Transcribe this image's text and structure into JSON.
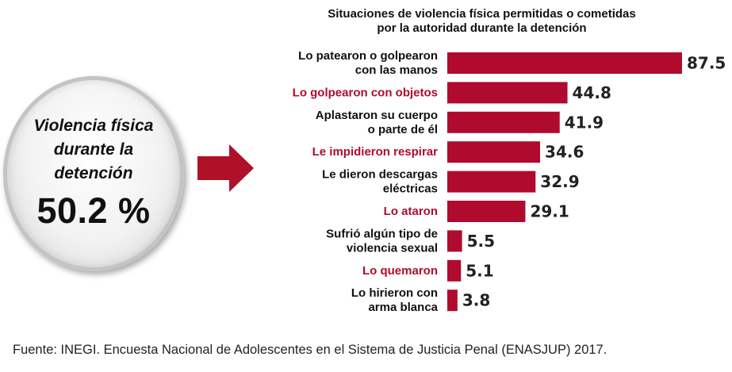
{
  "summary": {
    "label_lines": [
      "Violencia física",
      "durante la",
      "detención"
    ],
    "value": "50.2 %"
  },
  "colors": {
    "bar": "#b00b2e",
    "highlight_label": "#b00b2e",
    "label": "#111111",
    "arrow": "#b01028"
  },
  "source": "Fuente: INEGI. Encuesta Nacional de Adolescentes en el Sistema de Justicia Penal (ENASJUP) 2017.",
  "chart_data": {
    "type": "bar",
    "orientation": "horizontal",
    "title_lines": [
      "Situaciones de violencia física permitidas o cometidas",
      "por la autoridad durante la detención"
    ],
    "categories": [
      [
        "Lo patearon o golpearon",
        "con las manos"
      ],
      [
        "Lo golpearon con objetos"
      ],
      [
        "Aplastaron su cuerpo",
        "o parte de él"
      ],
      [
        "Le impidieron respirar"
      ],
      [
        "Le dieron descargas",
        "eléctricas"
      ],
      [
        "Lo ataron"
      ],
      [
        "Sufrió algún tipo de",
        "violencia sexual"
      ],
      [
        "Lo quemaron"
      ],
      [
        "Lo hirieron con",
        "arma blanca"
      ]
    ],
    "highlighted": [
      false,
      true,
      false,
      true,
      false,
      true,
      false,
      true,
      false
    ],
    "values": [
      87.5,
      44.8,
      41.9,
      34.6,
      32.9,
      29.1,
      5.5,
      5.1,
      3.8
    ],
    "value_labels": [
      "87.5",
      "44.8",
      "41.9",
      "34.6",
      "32.9",
      "29.1",
      "5.5",
      "5.1",
      "3.8"
    ],
    "xlim": [
      0,
      87.5
    ],
    "unit": "%"
  }
}
